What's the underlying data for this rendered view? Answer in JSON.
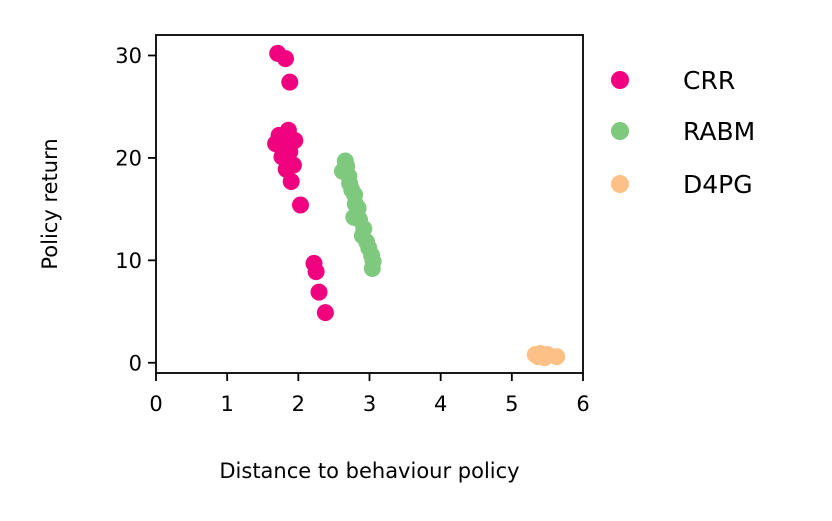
{
  "chart_data": {
    "type": "scatter",
    "title": "",
    "xlabel": "Distance to behaviour policy",
    "ylabel": "Policy return",
    "xlim": [
      0,
      6
    ],
    "ylim": [
      -1,
      32
    ],
    "xticks": [
      "0",
      "1",
      "2",
      "3",
      "4",
      "5",
      "6"
    ],
    "yticks": [
      "0",
      "10",
      "20",
      "30"
    ],
    "grid": false,
    "legend_position": "right",
    "series": [
      {
        "name": "CRR",
        "color": "#f0027f",
        "points": [
          [
            1.71,
            30.2
          ],
          [
            1.82,
            29.7
          ],
          [
            1.88,
            27.4
          ],
          [
            1.86,
            22.7
          ],
          [
            1.73,
            22.2
          ],
          [
            1.8,
            22.0
          ],
          [
            1.95,
            21.7
          ],
          [
            1.68,
            21.4
          ],
          [
            1.78,
            20.8
          ],
          [
            1.88,
            20.6
          ],
          [
            1.77,
            20.1
          ],
          [
            1.84,
            19.6
          ],
          [
            1.93,
            19.3
          ],
          [
            1.83,
            18.9
          ],
          [
            1.9,
            17.7
          ],
          [
            2.03,
            15.4
          ],
          [
            2.22,
            9.7
          ],
          [
            2.25,
            8.9
          ],
          [
            2.29,
            6.9
          ],
          [
            2.38,
            4.9
          ]
        ]
      },
      {
        "name": "RABM",
        "color": "#7fc97f",
        "points": [
          [
            2.66,
            19.7
          ],
          [
            2.68,
            19.2
          ],
          [
            2.62,
            18.7
          ],
          [
            2.71,
            18.2
          ],
          [
            2.72,
            17.5
          ],
          [
            2.75,
            16.9
          ],
          [
            2.79,
            16.4
          ],
          [
            2.8,
            15.5
          ],
          [
            2.84,
            15.1
          ],
          [
            2.78,
            14.2
          ],
          [
            2.86,
            14.0
          ],
          [
            2.92,
            13.1
          ],
          [
            2.9,
            12.4
          ],
          [
            2.96,
            11.8
          ],
          [
            2.99,
            11.2
          ],
          [
            3.03,
            10.5
          ],
          [
            3.05,
            9.9
          ],
          [
            3.04,
            9.2
          ]
        ]
      },
      {
        "name": "D4PG",
        "color": "#fdc086",
        "points": [
          [
            5.33,
            0.8
          ],
          [
            5.4,
            0.9
          ],
          [
            5.44,
            0.7
          ],
          [
            5.5,
            0.8
          ],
          [
            5.37,
            0.6
          ],
          [
            5.46,
            0.5
          ],
          [
            5.63,
            0.6
          ]
        ]
      }
    ]
  }
}
